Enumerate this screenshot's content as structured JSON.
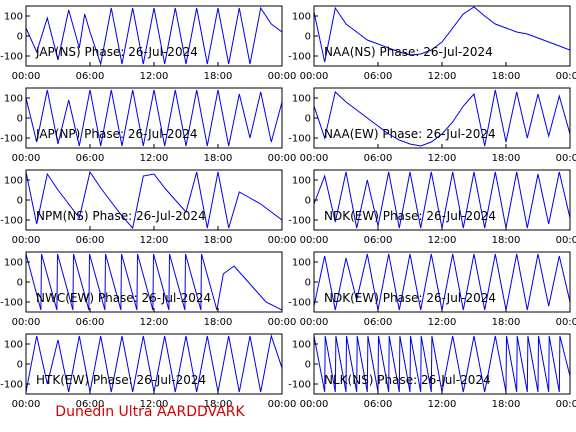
{
  "footer": "Dunedin Ultra AARDDVARK",
  "colors": {
    "trace": "#0000ee",
    "axis": "#000000",
    "footer": "#d40000"
  },
  "chart_data": [
    {
      "type": "line",
      "title": "JAP(NS) Phase: 26-Jul-2024",
      "ylim": [
        -150,
        150
      ],
      "yticks": [
        "100",
        "0",
        "-100"
      ],
      "xticks": [
        "00:00",
        "06:00",
        "12:00",
        "18:00",
        "00:00"
      ],
      "x_hours": [
        0,
        1,
        2,
        3,
        4,
        5,
        5.5,
        6,
        7,
        8,
        9,
        10,
        11,
        12,
        13,
        14,
        15,
        16,
        17,
        18,
        19,
        20,
        21,
        22,
        23,
        24
      ],
      "y": [
        40,
        -80,
        90,
        -120,
        130,
        -60,
        110,
        20,
        -140,
        140,
        -140,
        140,
        -140,
        140,
        -140,
        140,
        -140,
        140,
        -140,
        140,
        -140,
        140,
        -140,
        140,
        60,
        20
      ]
    },
    {
      "type": "line",
      "title": "NAA(NS) Phase: 26-Jul-2024",
      "ylim": [
        -150,
        150
      ],
      "yticks": [
        "100",
        "0",
        "-100"
      ],
      "xticks": [
        "00:00",
        "06:00",
        "12:00",
        "18:00",
        "00:00"
      ],
      "x_hours": [
        0,
        1,
        2,
        3,
        4,
        5,
        6,
        7,
        8,
        9,
        10,
        11,
        12,
        13,
        14,
        15,
        16,
        17,
        18,
        19,
        20,
        21,
        22,
        23,
        24
      ],
      "y": [
        120,
        -130,
        140,
        60,
        20,
        -20,
        -40,
        -60,
        -80,
        -95,
        -90,
        -70,
        -30,
        40,
        110,
        145,
        100,
        60,
        40,
        20,
        10,
        -10,
        -30,
        -50,
        -70
      ]
    },
    {
      "type": "line",
      "title": "JAP(NP) Phase: 26-Jul-2024",
      "ylim": [
        -150,
        150
      ],
      "yticks": [
        "100",
        "0",
        "-100"
      ],
      "xticks": [
        "00:00",
        "06:00",
        "12:00",
        "18:00",
        "00:00"
      ],
      "x_hours": [
        0,
        1,
        2,
        3,
        4,
        5,
        6,
        7,
        8,
        9,
        10,
        11,
        12,
        13,
        14,
        15,
        16,
        17,
        18,
        19,
        20,
        21,
        22,
        23,
        24
      ],
      "y": [
        100,
        -120,
        140,
        -130,
        90,
        -140,
        140,
        -140,
        140,
        -140,
        140,
        -140,
        140,
        -140,
        140,
        -140,
        140,
        -140,
        140,
        -140,
        120,
        -100,
        130,
        -120,
        80
      ]
    },
    {
      "type": "line",
      "title": "NAA(EW) Phase: 26-Jul-2024",
      "ylim": [
        -150,
        150
      ],
      "yticks": [
        "100",
        "0",
        "-100"
      ],
      "xticks": [
        "00:00",
        "06:00",
        "12:00",
        "18:00",
        "00:00"
      ],
      "x_hours": [
        0,
        1,
        2,
        3,
        4,
        5,
        6,
        7,
        8,
        9,
        10,
        11,
        12,
        13,
        14,
        15,
        16,
        17,
        18,
        19,
        20,
        21,
        22,
        23,
        24
      ],
      "y": [
        60,
        -100,
        130,
        80,
        40,
        0,
        -40,
        -80,
        -110,
        -130,
        -140,
        -120,
        -80,
        -20,
        60,
        120,
        -140,
        140,
        -120,
        130,
        -100,
        120,
        -90,
        110,
        -80
      ]
    },
    {
      "type": "line",
      "title": "NPM(NS) Phase: 26-Jul-2024",
      "ylim": [
        -150,
        150
      ],
      "yticks": [
        "100",
        "0",
        "-100"
      ],
      "xticks": [
        "00:00",
        "06:00",
        "12:00",
        "18:00",
        "00:00"
      ],
      "x_hours": [
        0,
        1,
        2,
        3,
        4,
        5,
        6,
        7,
        8,
        9,
        10,
        11,
        12,
        13,
        14,
        15,
        16,
        17,
        18,
        19,
        20,
        21,
        22,
        23,
        24
      ],
      "y": [
        140,
        -120,
        130,
        50,
        -20,
        -90,
        140,
        60,
        -10,
        -80,
        -140,
        120,
        130,
        60,
        0,
        -60,
        140,
        -140,
        140,
        -140,
        40,
        10,
        -20,
        -60,
        -100
      ]
    },
    {
      "type": "line",
      "title": "NDK(EW) Phase: 26-Jul-2024",
      "ylim": [
        -150,
        150
      ],
      "yticks": [
        "100",
        "0",
        "-100"
      ],
      "xticks": [
        "00:00",
        "06:00",
        "12:00",
        "18:00",
        "00:00"
      ],
      "x_hours": [
        0,
        1,
        2,
        3,
        4,
        5,
        6,
        7,
        8,
        9,
        10,
        11,
        12,
        13,
        14,
        15,
        16,
        17,
        18,
        19,
        20,
        21,
        22,
        23,
        24
      ],
      "y": [
        -20,
        120,
        -110,
        140,
        -140,
        100,
        -130,
        140,
        -140,
        140,
        -140,
        140,
        -140,
        140,
        -140,
        140,
        -140,
        140,
        -140,
        140,
        -140,
        130,
        -120,
        140,
        -90
      ]
    },
    {
      "type": "line",
      "title": "NWC(EW) Phase: 26-Jul-2024",
      "ylim": [
        -150,
        150
      ],
      "yticks": [
        "100",
        "0",
        "-100"
      ],
      "xticks": [
        "00:00",
        "06:00",
        "12:00",
        "18:00",
        "00:00"
      ],
      "x_hours": [
        0,
        1.4,
        1.45,
        2.9,
        2.95,
        4.4,
        4.45,
        5.9,
        5.95,
        7.4,
        7.45,
        8.9,
        8.95,
        10.4,
        10.45,
        11.9,
        11.95,
        13.4,
        13.45,
        14.9,
        14.95,
        16.4,
        16.45,
        17.9,
        18.5,
        19.5,
        20.5,
        21.5,
        22.5,
        24
      ],
      "y": [
        140,
        -140,
        140,
        -140,
        140,
        -140,
        140,
        -140,
        140,
        -140,
        140,
        -140,
        140,
        -140,
        140,
        -140,
        140,
        -140,
        140,
        -140,
        140,
        -140,
        140,
        -140,
        40,
        80,
        20,
        -40,
        -100,
        -140
      ]
    },
    {
      "type": "line",
      "title": "NDK(EW) Phase: 26-Jul-2024",
      "ylim": [
        -150,
        150
      ],
      "yticks": [
        "100",
        "0",
        "-100"
      ],
      "xticks": [
        "00:00",
        "06:00",
        "12:00",
        "18:00",
        "00:00"
      ],
      "x_hours": [
        0,
        1,
        2,
        3,
        4,
        5,
        6,
        7,
        8,
        9,
        10,
        11,
        12,
        13,
        14,
        15,
        16,
        17,
        18,
        19,
        20,
        21,
        22,
        23,
        24
      ],
      "y": [
        -120,
        130,
        -140,
        120,
        -90,
        140,
        -140,
        140,
        -140,
        140,
        -140,
        140,
        -140,
        140,
        -140,
        140,
        -140,
        140,
        -140,
        140,
        -140,
        140,
        -120,
        130,
        -100
      ]
    },
    {
      "type": "line",
      "title": "HTK(EW) Phase: 26-Jul-2024",
      "ylim": [
        -150,
        150
      ],
      "yticks": [
        "100",
        "0",
        "-100"
      ],
      "xticks": [
        "00:00",
        "06:00",
        "12:00",
        "18:00",
        "00:00"
      ],
      "x_hours": [
        0,
        1,
        2,
        3,
        4,
        5,
        6,
        7,
        8,
        9,
        10,
        11,
        12,
        13,
        14,
        15,
        16,
        17,
        18,
        19,
        20,
        21,
        22,
        23,
        24
      ],
      "y": [
        -140,
        140,
        -100,
        120,
        -140,
        140,
        -140,
        140,
        -140,
        140,
        -140,
        140,
        -140,
        140,
        -140,
        140,
        -140,
        140,
        -140,
        140,
        -140,
        140,
        -140,
        140,
        -20
      ]
    },
    {
      "type": "line",
      "title": "NLK(NS) Phase: 26-Jul-2024",
      "ylim": [
        -150,
        150
      ],
      "yticks": [
        "100",
        "0",
        "-100"
      ],
      "xticks": [
        "00:00",
        "06:00",
        "12:00",
        "18:00",
        "00:00"
      ],
      "x_hours": [
        0,
        1,
        1.05,
        2,
        2.05,
        3,
        3.05,
        4,
        4.05,
        5,
        5.05,
        6,
        6.05,
        7,
        7.05,
        8,
        8.05,
        9,
        9.05,
        10,
        10.05,
        11,
        11.05,
        12,
        13,
        14,
        15,
        16,
        17,
        18,
        18.05,
        19,
        19.05,
        20,
        20.05,
        21,
        21.05,
        22,
        22.05,
        23,
        23.05,
        24
      ],
      "y": [
        140,
        -140,
        140,
        -140,
        140,
        -140,
        140,
        -140,
        140,
        -140,
        140,
        -140,
        140,
        -140,
        140,
        -140,
        140,
        -140,
        140,
        -140,
        140,
        -140,
        140,
        -140,
        140,
        -140,
        140,
        -140,
        140,
        -140,
        140,
        -140,
        140,
        -140,
        140,
        -140,
        140,
        -140,
        140,
        -140,
        140,
        -60
      ]
    }
  ]
}
